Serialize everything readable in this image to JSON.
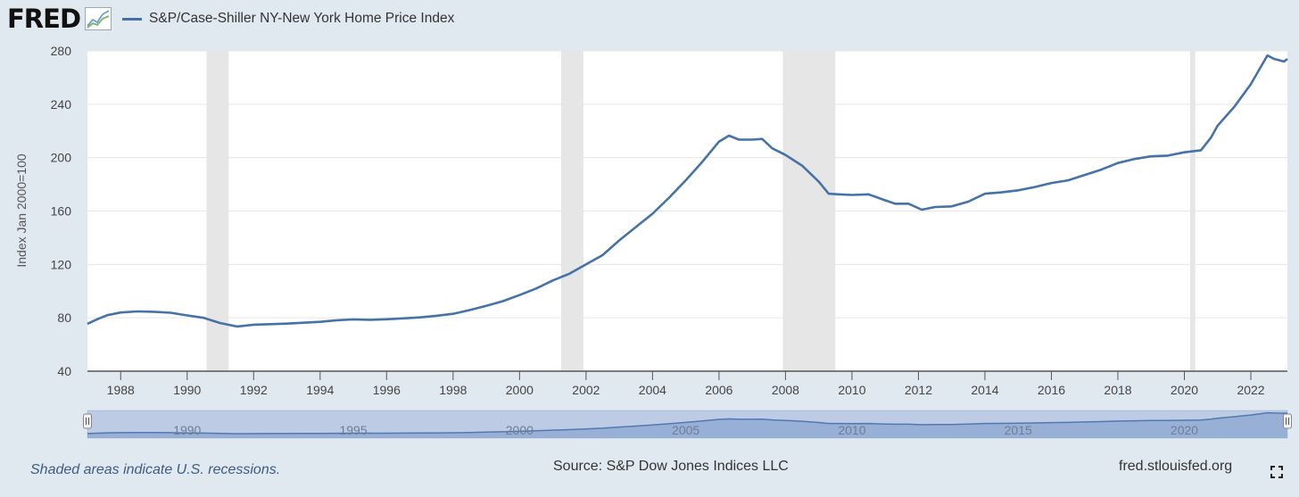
{
  "header": {
    "logo": "FRED",
    "series_title": "S&P/Case-Shiller NY-New York Home Price Index"
  },
  "footer": {
    "recession_note": "Shaded areas indicate U.S. recessions.",
    "source": "Source: S&P Dow Jones Indices LLC",
    "site": "fred.stlouisfed.org"
  },
  "colors": {
    "series_line": "#4572a7",
    "recession_shade": "#e6e6e6",
    "background": "#e1e9f0"
  },
  "icons": {
    "logo_graph": "fred-graph-icon",
    "fullscreen": "fullscreen-icon"
  },
  "chart_data": {
    "type": "line",
    "title": "S&P/Case-Shiller NY-New York Home Price Index",
    "xlabel": "",
    "ylabel": "Index Jan 2000=100",
    "xlim": [
      1987.0,
      2023.1
    ],
    "ylim": [
      40,
      280
    ],
    "yticks": [
      40,
      80,
      120,
      160,
      200,
      240,
      280
    ],
    "xticks": [
      "1988",
      "1990",
      "1992",
      "1994",
      "1996",
      "1998",
      "2000",
      "2002",
      "2004",
      "2006",
      "2008",
      "2010",
      "2012",
      "2014",
      "2016",
      "2018",
      "2020",
      "2022"
    ],
    "recessions": [
      [
        1990.58,
        1991.25
      ],
      [
        2001.25,
        2001.92
      ],
      [
        2007.92,
        2009.5
      ],
      [
        2020.17,
        2020.33
      ]
    ],
    "navigator_ticks": [
      "1990",
      "1995",
      "2000",
      "2005",
      "2010",
      "2015",
      "2020"
    ],
    "series": [
      {
        "name": "S&P/Case-Shiller NY-New York Home Price Index",
        "points": [
          [
            1987.0,
            75.5
          ],
          [
            1987.3,
            79
          ],
          [
            1987.6,
            82
          ],
          [
            1988.0,
            84
          ],
          [
            1988.5,
            84.8
          ],
          [
            1989.0,
            84.5
          ],
          [
            1989.5,
            83.8
          ],
          [
            1990.0,
            81.8
          ],
          [
            1990.5,
            80
          ],
          [
            1991.0,
            76
          ],
          [
            1991.5,
            73.5
          ],
          [
            1992.0,
            74.8
          ],
          [
            1992.5,
            75.2
          ],
          [
            1993.0,
            75.6
          ],
          [
            1993.5,
            76.3
          ],
          [
            1994.0,
            77
          ],
          [
            1994.5,
            78.2
          ],
          [
            1995.0,
            78.8
          ],
          [
            1995.5,
            78.5
          ],
          [
            1996.0,
            78.9
          ],
          [
            1996.5,
            79.6
          ],
          [
            1997.0,
            80.3
          ],
          [
            1997.5,
            81.5
          ],
          [
            1998.0,
            83
          ],
          [
            1998.5,
            85.8
          ],
          [
            1999.0,
            89
          ],
          [
            1999.5,
            92.5
          ],
          [
            2000.0,
            97
          ],
          [
            2000.5,
            102
          ],
          [
            2001.0,
            108
          ],
          [
            2001.5,
            113
          ],
          [
            2002.0,
            120
          ],
          [
            2002.5,
            127
          ],
          [
            2003.0,
            138
          ],
          [
            2003.5,
            148
          ],
          [
            2004.0,
            158
          ],
          [
            2004.5,
            170
          ],
          [
            2005.0,
            183
          ],
          [
            2005.5,
            197
          ],
          [
            2006.0,
            212
          ],
          [
            2006.3,
            216.5
          ],
          [
            2006.6,
            213.5
          ],
          [
            2007.0,
            213.5
          ],
          [
            2007.3,
            214
          ],
          [
            2007.6,
            207
          ],
          [
            2008.0,
            202
          ],
          [
            2008.5,
            194
          ],
          [
            2009.0,
            182
          ],
          [
            2009.3,
            173
          ],
          [
            2009.6,
            172.5
          ],
          [
            2010.0,
            172
          ],
          [
            2010.5,
            172.5
          ],
          [
            2011.0,
            168
          ],
          [
            2011.3,
            165.5
          ],
          [
            2011.7,
            165.5
          ],
          [
            2012.1,
            161
          ],
          [
            2012.5,
            163
          ],
          [
            2013.0,
            163.5
          ],
          [
            2013.5,
            167
          ],
          [
            2014.0,
            173
          ],
          [
            2014.5,
            174
          ],
          [
            2015.0,
            175.5
          ],
          [
            2015.5,
            178
          ],
          [
            2016.0,
            181
          ],
          [
            2016.5,
            183
          ],
          [
            2017.0,
            187
          ],
          [
            2017.5,
            191
          ],
          [
            2018.0,
            196
          ],
          [
            2018.5,
            199
          ],
          [
            2019.0,
            201
          ],
          [
            2019.5,
            201.5
          ],
          [
            2020.0,
            204
          ],
          [
            2020.5,
            205.5
          ],
          [
            2020.8,
            215
          ],
          [
            2021.0,
            224
          ],
          [
            2021.5,
            238
          ],
          [
            2022.0,
            255
          ],
          [
            2022.3,
            268
          ],
          [
            2022.5,
            276.5
          ],
          [
            2022.7,
            274
          ],
          [
            2023.0,
            272
          ],
          [
            2023.1,
            274
          ]
        ]
      }
    ]
  }
}
